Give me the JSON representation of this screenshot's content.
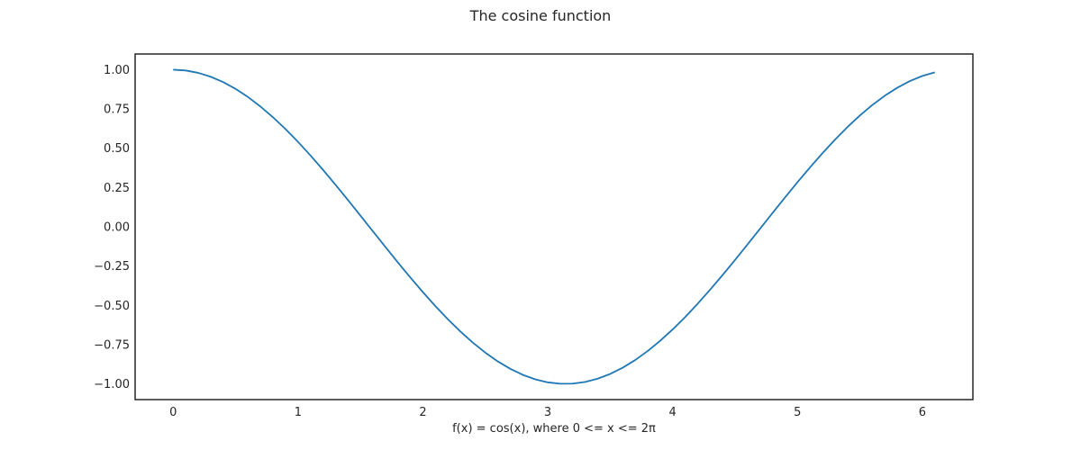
{
  "chart_data": {
    "type": "line",
    "title": "The cosine function",
    "xlabel": "f(x) = cos(x), where 0 <= x <= 2π",
    "ylabel": "",
    "xlim": [
      -0.305,
      6.405
    ],
    "ylim": [
      -1.0999,
      1.0999
    ],
    "x_ticks": [
      0,
      1,
      2,
      3,
      4,
      5,
      6
    ],
    "x_tick_labels": [
      "0",
      "1",
      "2",
      "3",
      "4",
      "5",
      "6"
    ],
    "y_ticks": [
      1.0,
      0.75,
      0.5,
      0.25,
      0.0,
      -0.25,
      -0.5,
      -0.75,
      -1.0
    ],
    "y_tick_labels": [
      "1.00",
      "0.75",
      "0.50",
      "0.25",
      "0.00",
      "−0.25",
      "−0.50",
      "−0.75",
      "−1.00"
    ],
    "grid": false,
    "legend": "none",
    "series": [
      {
        "color": "#1f77b4",
        "x": [
          0.0,
          0.1,
          0.2,
          0.3,
          0.4,
          0.5,
          0.6,
          0.7,
          0.8,
          0.9,
          1.0,
          1.1,
          1.2,
          1.3,
          1.4,
          1.5,
          1.6,
          1.7,
          1.8,
          1.9,
          2.0,
          2.1,
          2.2,
          2.3,
          2.4,
          2.5,
          2.6,
          2.7,
          2.8,
          2.9,
          3.0,
          3.1,
          3.2,
          3.3,
          3.4,
          3.5,
          3.6,
          3.7,
          3.8,
          3.9,
          4.0,
          4.1,
          4.2,
          4.3,
          4.4,
          4.5,
          4.6,
          4.7,
          4.8,
          4.9,
          5.0,
          5.1,
          5.2,
          5.3,
          5.4,
          5.5,
          5.6,
          5.7,
          5.8,
          5.9,
          6.0,
          6.1
        ],
        "y": [
          1.0,
          0.995,
          0.98,
          0.9553,
          0.9211,
          0.8776,
          0.8253,
          0.7648,
          0.6967,
          0.6216,
          0.5403,
          0.4536,
          0.3624,
          0.2675,
          0.17,
          0.0707,
          -0.0292,
          -0.1288,
          -0.2272,
          -0.3233,
          -0.4161,
          -0.5048,
          -0.5885,
          -0.6663,
          -0.7374,
          -0.8011,
          -0.8569,
          -0.9041,
          -0.9422,
          -0.971,
          -0.99,
          -0.9991,
          -0.9983,
          -0.9875,
          -0.9668,
          -0.9365,
          -0.8968,
          -0.8481,
          -0.791,
          -0.7259,
          -0.6536,
          -0.5748,
          -0.4903,
          -0.4008,
          -0.3073,
          -0.2108,
          -0.1122,
          -0.0124,
          0.0875,
          0.1865,
          0.2837,
          0.378,
          0.4685,
          0.5544,
          0.6347,
          0.7087,
          0.7756,
          0.8347,
          0.8855,
          0.9275,
          0.9602,
          0.9833
        ]
      }
    ]
  }
}
